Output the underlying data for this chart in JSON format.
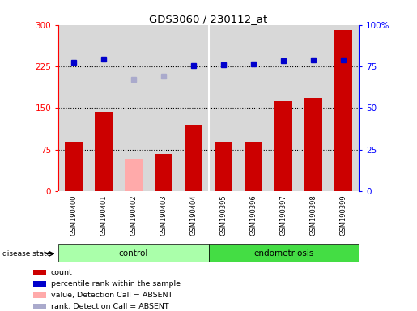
{
  "title": "GDS3060 / 230112_at",
  "samples": [
    "GSM190400",
    "GSM190401",
    "GSM190402",
    "GSM190403",
    "GSM190404",
    "GSM190395",
    "GSM190396",
    "GSM190397",
    "GSM190398",
    "GSM190399"
  ],
  "groups": [
    "control",
    "control",
    "control",
    "control",
    "control",
    "endometriosis",
    "endometriosis",
    "endometriosis",
    "endometriosis",
    "endometriosis"
  ],
  "bar_values": [
    90,
    143,
    null,
    68,
    120,
    90,
    90,
    163,
    168,
    291
  ],
  "bar_absent_values": [
    null,
    null,
    58,
    null,
    null,
    null,
    null,
    null,
    null,
    null
  ],
  "dot_values": [
    232,
    238,
    null,
    null,
    226,
    228,
    229,
    236,
    237,
    237
  ],
  "dot_absent_values": [
    null,
    null,
    202,
    207,
    null,
    null,
    null,
    null,
    null,
    null
  ],
  "dot_color_normal": "#0000cc",
  "dot_color_absent": "#aaaacc",
  "bar_color_normal": "#cc0000",
  "bar_color_absent": "#ffaaaa",
  "ylim_left": [
    0,
    300
  ],
  "yticks_left": [
    0,
    75,
    150,
    225,
    300
  ],
  "yticks_right": [
    0,
    25,
    50,
    75,
    100
  ],
  "dotted_lines": [
    75,
    150,
    225
  ],
  "legend_items": [
    {
      "color": "#cc0000",
      "label": "count"
    },
    {
      "color": "#0000cc",
      "label": "percentile rank within the sample"
    },
    {
      "color": "#ffaaaa",
      "label": "value, Detection Call = ABSENT"
    },
    {
      "color": "#aaaacc",
      "label": "rank, Detection Call = ABSENT"
    }
  ],
  "group_label": "disease state",
  "control_color": "#aaffaa",
  "endo_color": "#44dd44",
  "plot_bg_color": "#d8d8d8",
  "sep_color": "#ffffff"
}
